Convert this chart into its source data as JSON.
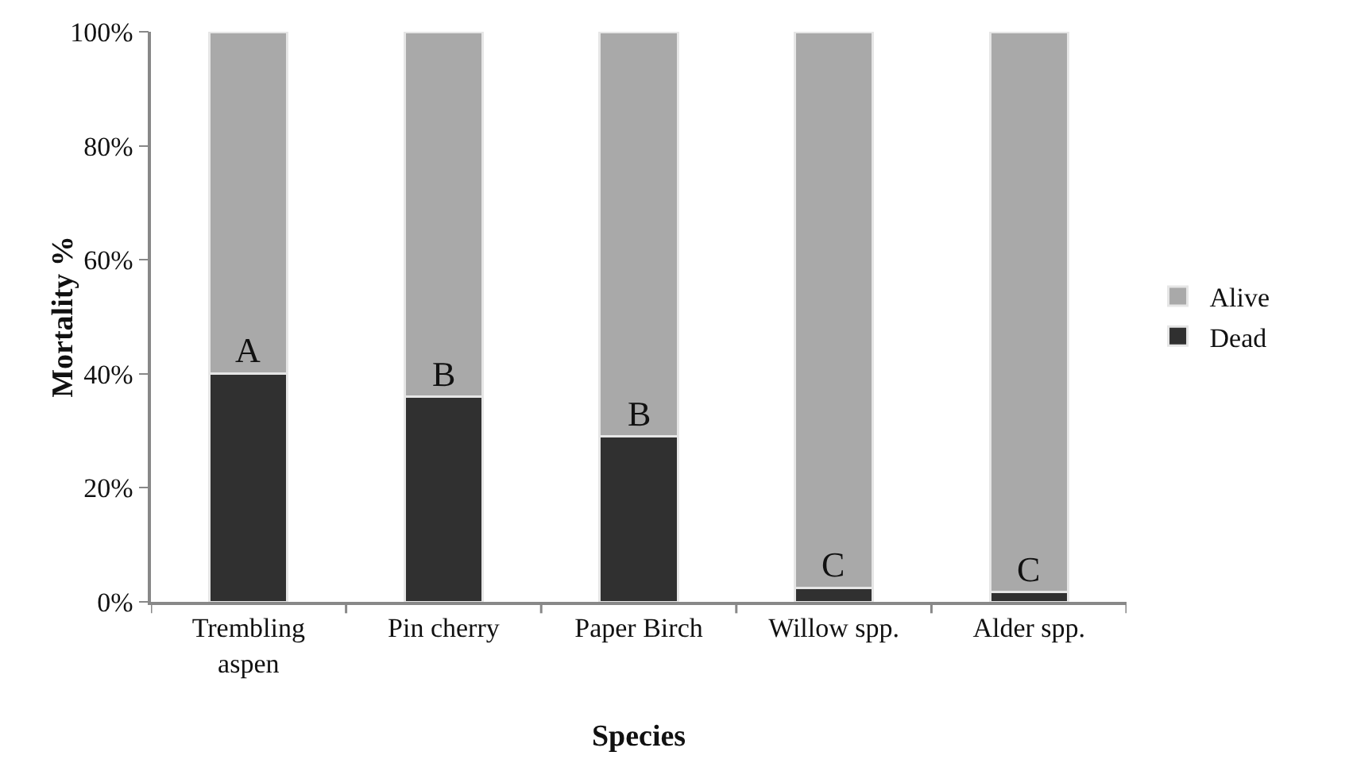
{
  "chart_data": {
    "type": "bar",
    "stacked": true,
    "xlabel": "Species",
    "ylabel": "Mortality %",
    "categories": [
      "Trembling aspen",
      "Pin cherry",
      "Paper Birch",
      "Willow spp.",
      "Alder spp."
    ],
    "series": [
      {
        "name": "Dead",
        "color": "#303030",
        "values": [
          40,
          36,
          29,
          2.4,
          1.8
        ]
      },
      {
        "name": "Alive",
        "color": "#a9a9a9",
        "values": [
          60,
          64,
          71,
          97.6,
          98.2
        ]
      }
    ],
    "ylim": [
      0,
      100
    ],
    "yticks": [
      {
        "value": 0,
        "label": "0%"
      },
      {
        "value": 20,
        "label": "20%"
      },
      {
        "value": 40,
        "label": "40%"
      },
      {
        "value": 60,
        "label": "60%"
      },
      {
        "value": 80,
        "label": "80%"
      },
      {
        "value": 100,
        "label": "100%"
      }
    ],
    "grid": false,
    "legend": "right",
    "annotations": [
      {
        "text": "A",
        "x": "Trembling aspen",
        "y": 40
      },
      {
        "text": "B",
        "x": "Pin cherry",
        "y": 36
      },
      {
        "text": "B",
        "x": "Paper Birch",
        "y": 29
      },
      {
        "text": "C",
        "x": "Willow spp.",
        "y": 2.4
      },
      {
        "text": "C",
        "x": "Alder spp.",
        "y": 1.8
      }
    ]
  }
}
